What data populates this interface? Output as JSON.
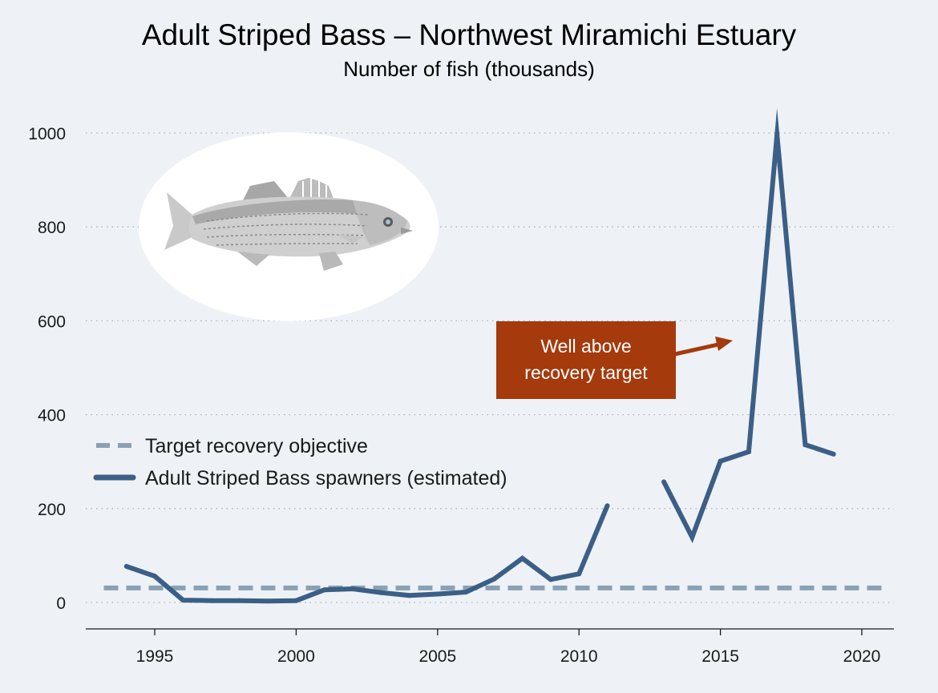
{
  "chart_data": {
    "type": "line",
    "title": "Adult Striped Bass – Northwest Miramichi Estuary",
    "subtitle": "Number of fish (thousands)",
    "xlim": [
      1993,
      2021
    ],
    "ylim": [
      -50,
      1050
    ],
    "x_ticks": [
      "1995",
      "2000",
      "2005",
      "2010",
      "2015",
      "2020"
    ],
    "y_ticks": [
      "0",
      "200",
      "400",
      "600",
      "800",
      "1000"
    ],
    "grid": "horizontal dotted",
    "legend_position": "middle-left",
    "series": [
      {
        "name": "Target recovery objective",
        "style": "dashed",
        "color": "#8aa1b4",
        "x": [
          1993.2,
          2020.7
        ],
        "y": [
          31,
          31
        ]
      },
      {
        "name": "Adult Striped Bass spawners (estimated)",
        "style": "solid",
        "color": "#3b5f86",
        "x": [
          1994,
          1995,
          1996,
          1997,
          1998,
          1999,
          2000,
          2001,
          2002,
          2003,
          2004,
          2005,
          2006,
          2007,
          2008,
          2009,
          2010,
          2011,
          2012,
          2013,
          2014,
          2015,
          2016,
          2017,
          2018,
          2019
        ],
        "y": [
          77,
          56,
          5,
          4,
          4,
          3,
          4,
          27,
          29,
          21,
          15,
          18,
          22,
          50,
          94,
          49,
          61,
          206,
          null,
          257,
          139,
          301,
          321,
          996,
          336,
          316
        ]
      }
    ],
    "annotation": {
      "text_line1": "Well above",
      "text_line2": "recovery target",
      "color": "#a53a0d"
    }
  }
}
